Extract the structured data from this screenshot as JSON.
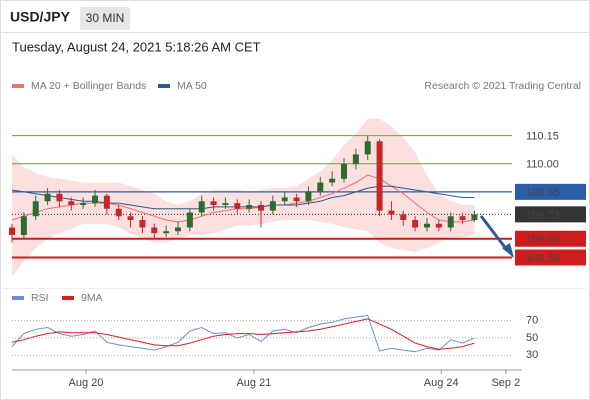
{
  "header": {
    "symbol": "USD/JPY",
    "timeframe": "30 MIN",
    "date": "Tuesday, August 24, 2021 5:18:26 AM CET"
  },
  "chart_data": [
    {
      "type": "candlestick",
      "source": "Research © 2021 Trading Central",
      "x": [
        0,
        1,
        2,
        3,
        4,
        5,
        6,
        7,
        8,
        9,
        10,
        11,
        12,
        13,
        14,
        15,
        16,
        17,
        18,
        19,
        20,
        21,
        22,
        23,
        24,
        25,
        26,
        27,
        28,
        29,
        30,
        31,
        32,
        33,
        34,
        35,
        36,
        37,
        38,
        39
      ],
      "open": [
        109.66,
        109.62,
        109.72,
        109.8,
        109.84,
        109.8,
        109.78,
        109.79,
        109.83,
        109.76,
        109.72,
        109.7,
        109.66,
        109.63,
        109.64,
        109.66,
        109.74,
        109.8,
        109.78,
        109.79,
        109.76,
        109.78,
        109.75,
        109.8,
        109.82,
        109.8,
        109.85,
        109.9,
        109.92,
        110.0,
        110.05,
        110.12,
        109.75,
        109.73,
        109.7,
        109.66,
        109.68,
        109.66,
        109.72,
        109.7
      ],
      "high": [
        109.68,
        109.74,
        109.83,
        109.87,
        109.86,
        109.82,
        109.82,
        109.86,
        109.84,
        109.78,
        109.74,
        109.72,
        109.68,
        109.67,
        109.69,
        109.76,
        109.83,
        109.82,
        109.82,
        109.81,
        109.81,
        109.8,
        109.83,
        109.85,
        109.84,
        109.88,
        109.93,
        109.96,
        110.03,
        110.08,
        110.15,
        110.13,
        109.8,
        109.75,
        109.72,
        109.71,
        109.7,
        109.74,
        109.74,
        109.75
      ],
      "low": [
        109.58,
        109.6,
        109.7,
        109.78,
        109.77,
        109.75,
        109.76,
        109.77,
        109.73,
        109.7,
        109.66,
        109.63,
        109.6,
        109.61,
        109.62,
        109.64,
        109.72,
        109.75,
        109.76,
        109.73,
        109.74,
        109.66,
        109.73,
        109.78,
        109.77,
        109.78,
        109.83,
        109.88,
        109.9,
        109.97,
        110.02,
        109.72,
        109.7,
        109.67,
        109.64,
        109.64,
        109.64,
        109.64,
        109.68,
        109.69
      ],
      "close": [
        109.62,
        109.72,
        109.8,
        109.84,
        109.8,
        109.78,
        109.79,
        109.83,
        109.76,
        109.72,
        109.7,
        109.66,
        109.63,
        109.64,
        109.66,
        109.74,
        109.8,
        109.78,
        109.79,
        109.76,
        109.78,
        109.75,
        109.8,
        109.82,
        109.8,
        109.85,
        109.9,
        109.92,
        110.0,
        110.05,
        110.12,
        109.75,
        109.73,
        109.7,
        109.66,
        109.68,
        109.66,
        109.72,
        109.7,
        109.73
      ],
      "up_color": "#2e6b2e",
      "down_color": "#c62828",
      "series": [
        {
          "name": "MA 20 + Bollinger Bands",
          "color": "#e8736f",
          "values": [
            109.7,
            109.72,
            109.74,
            109.76,
            109.77,
            109.78,
            109.79,
            109.79,
            109.79,
            109.78,
            109.76,
            109.74,
            109.72,
            109.7,
            109.69,
            109.7,
            109.72,
            109.74,
            109.75,
            109.76,
            109.76,
            109.77,
            109.78,
            109.78,
            109.79,
            109.8,
            109.82,
            109.84,
            109.87,
            109.9,
            109.94,
            109.92,
            109.88,
            109.84,
            109.79,
            109.74,
            109.7,
            109.69,
            109.69,
            109.7
          ]
        },
        {
          "name": "MA 50",
          "color": "#2b5a8c",
          "values": [
            109.86,
            109.85,
            109.84,
            109.83,
            109.82,
            109.81,
            109.8,
            109.8,
            109.79,
            109.79,
            109.78,
            109.77,
            109.76,
            109.76,
            109.76,
            109.76,
            109.76,
            109.77,
            109.77,
            109.77,
            109.77,
            109.77,
            109.78,
            109.78,
            109.78,
            109.79,
            109.8,
            109.82,
            109.83,
            109.85,
            109.87,
            109.88,
            109.88,
            109.87,
            109.86,
            109.85,
            109.84,
            109.83,
            109.82,
            109.82
          ]
        }
      ],
      "bands": {
        "color": "#fbd9d9",
        "upper": [
          110.05,
          109.98,
          109.95,
          109.93,
          109.92,
          109.91,
          109.9,
          109.9,
          109.9,
          109.9,
          109.88,
          109.86,
          109.84,
          109.8,
          109.78,
          109.8,
          109.84,
          109.86,
          109.86,
          109.86,
          109.85,
          109.86,
          109.87,
          109.87,
          109.88,
          109.92,
          109.96,
          110.02,
          110.1,
          110.16,
          110.24,
          110.24,
          110.2,
          110.14,
          110.06,
          109.94,
          109.84,
          109.8,
          109.78,
          109.78
        ],
        "lower": [
          109.4,
          109.48,
          109.55,
          109.6,
          109.63,
          109.65,
          109.68,
          109.68,
          109.68,
          109.66,
          109.63,
          109.6,
          109.58,
          109.58,
          109.6,
          109.62,
          109.62,
          109.63,
          109.65,
          109.67,
          109.67,
          109.68,
          109.69,
          109.7,
          109.7,
          109.7,
          109.69,
          109.68,
          109.66,
          109.65,
          109.64,
          109.58,
          109.55,
          109.54,
          109.53,
          109.55,
          109.58,
          109.6,
          109.61,
          109.62
        ]
      },
      "levels": [
        {
          "value": 110.15,
          "color": "#6aa536",
          "width": 1,
          "box": false
        },
        {
          "value": 110.0,
          "label": "110.00",
          "color": "#6aa536",
          "width": 1,
          "box": false
        },
        {
          "value": 109.85,
          "color": "#2a5ea8",
          "width": 1.2,
          "box": true
        },
        {
          "value": 109.73,
          "color": "#333333",
          "width": 1,
          "box": true,
          "style": "dotted"
        },
        {
          "value": 109.6,
          "label": "109.60",
          "color": "#d01c1c",
          "width": 2,
          "box": true
        },
        {
          "value": 109.5,
          "label": "109.50",
          "color": "#d01c1c",
          "width": 2,
          "box": true
        }
      ],
      "xlim": [
        0,
        42
      ],
      "ylim": [
        109.38,
        110.34
      ]
    },
    {
      "type": "line",
      "x": [
        0,
        1,
        2,
        3,
        4,
        5,
        6,
        7,
        8,
        9,
        10,
        11,
        12,
        13,
        14,
        15,
        16,
        17,
        18,
        19,
        20,
        21,
        22,
        23,
        24,
        25,
        26,
        27,
        28,
        29,
        30,
        31,
        32,
        33,
        34,
        35,
        36,
        37,
        38,
        39
      ],
      "series": [
        {
          "name": "RSI",
          "color": "#6b8fd6",
          "values": [
            40,
            55,
            60,
            62,
            55,
            52,
            54,
            58,
            45,
            42,
            40,
            38,
            36,
            40,
            45,
            58,
            62,
            55,
            56,
            50,
            54,
            46,
            58,
            60,
            56,
            62,
            66,
            68,
            72,
            74,
            76,
            35,
            38,
            36,
            34,
            38,
            36,
            48,
            44,
            50
          ]
        },
        {
          "name": "9MA",
          "color": "#d62020",
          "values": [
            45,
            48,
            52,
            55,
            57,
            56,
            56,
            56,
            54,
            51,
            48,
            45,
            42,
            41,
            41,
            44,
            48,
            52,
            54,
            55,
            55,
            54,
            55,
            56,
            57,
            58,
            60,
            63,
            66,
            69,
            72,
            66,
            60,
            52,
            44,
            40,
            37,
            38,
            40,
            44
          ]
        }
      ],
      "xlim": [
        0,
        42
      ],
      "ylim": [
        13,
        88
      ],
      "yticks": [
        30,
        50,
        70
      ],
      "grid": true,
      "xticks": [
        {
          "value": 6.24,
          "label": "Aug 20"
        },
        {
          "value": 20.4,
          "label": "Aug 21"
        },
        {
          "value": 36.2,
          "label": "Aug 24"
        },
        {
          "value": 41.65,
          "label": "Sep 2"
        }
      ]
    }
  ]
}
